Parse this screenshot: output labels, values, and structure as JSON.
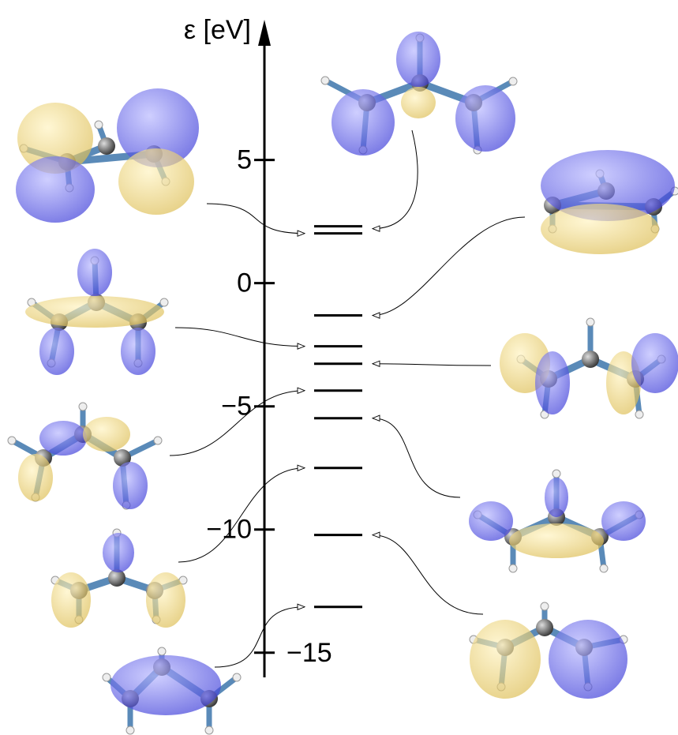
{
  "chart_data": {
    "type": "levels",
    "y_label": "ε [eV]",
    "levels": [
      2.31,
      2.02,
      -1.31,
      -2.56,
      -3.27,
      -4.36,
      -5.48,
      -7.5,
      -10.22,
      -13.14
    ],
    "ylim": [
      -16,
      10.5
    ],
    "yticks": [
      5,
      0,
      {
        "value": -5,
        "label": "−5"
      },
      {
        "value": -10,
        "label": "−10"
      },
      {
        "value": -15,
        "label": "−15"
      }
    ],
    "color": "#000000"
  }
}
